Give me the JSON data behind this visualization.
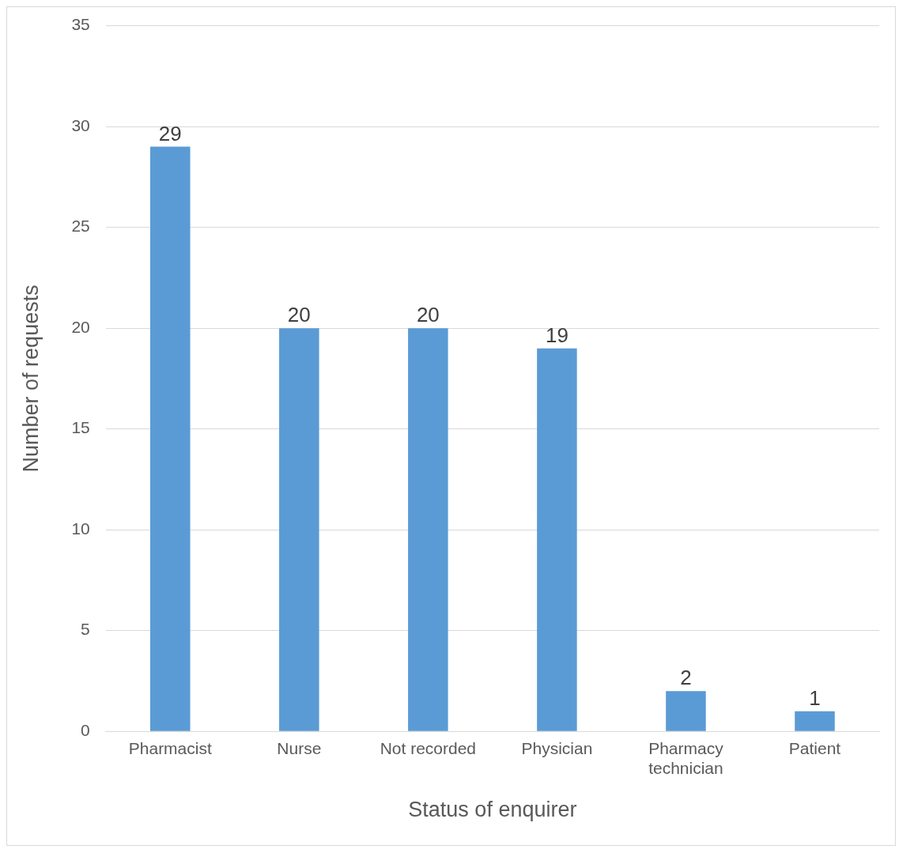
{
  "chart_data": {
    "type": "bar",
    "categories": [
      "Pharmacist",
      "Nurse",
      "Not recorded",
      "Physician",
      "Pharmacy technician",
      "Patient"
    ],
    "values": [
      29,
      20,
      20,
      19,
      2,
      1
    ],
    "color": "#5b9bd5",
    "xlabel": "Status of enquirer",
    "ylabel": "Number of requests",
    "ylim": [
      0,
      35
    ],
    "yticks": [
      0,
      5,
      10,
      15,
      20,
      25,
      30,
      35
    ],
    "grid": "y",
    "data_labels": true
  }
}
